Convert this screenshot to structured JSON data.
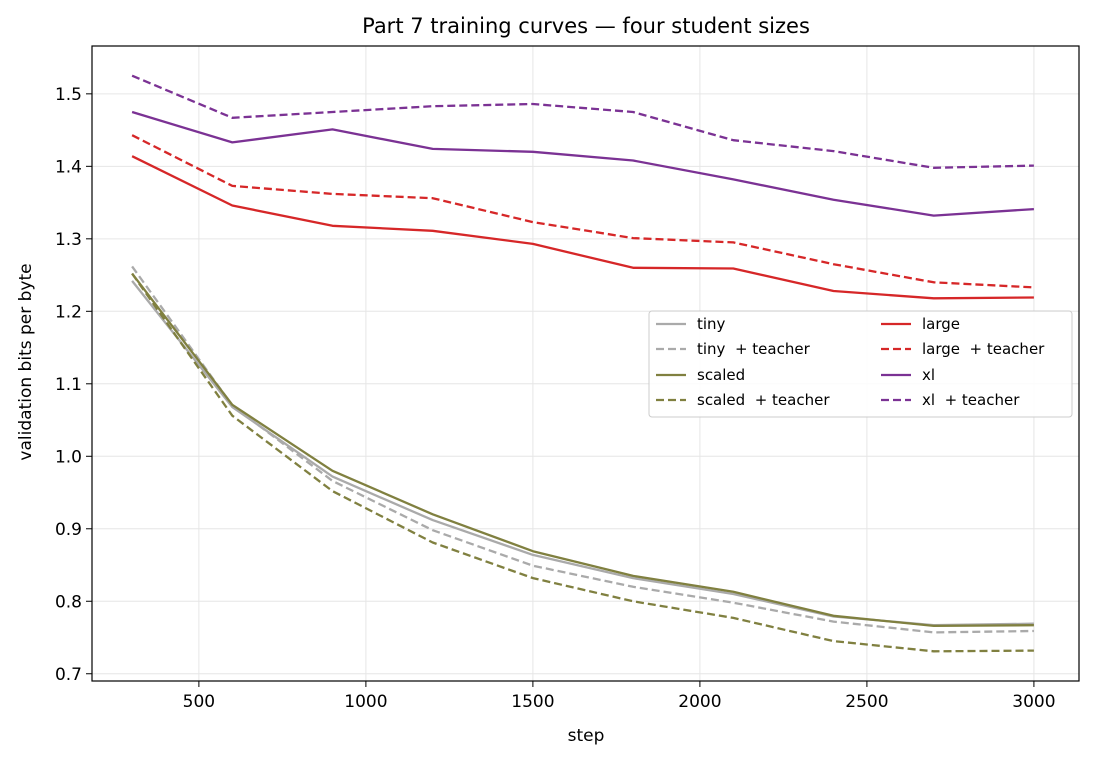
{
  "chart_data": {
    "type": "line",
    "title": "Part 7 training curves — four student sizes",
    "xlabel": "step",
    "ylabel": "validation bits per byte",
    "xlim": [
      180,
      3135
    ],
    "ylim": [
      0.69,
      1.566
    ],
    "xticks": [
      500,
      1000,
      1500,
      2000,
      2500,
      3000
    ],
    "yticks": [
      0.7,
      0.8,
      0.9,
      1.0,
      1.1,
      1.2,
      1.3,
      1.4,
      1.5
    ],
    "xtick_labels": [
      "500",
      "1000",
      "1500",
      "2000",
      "2500",
      "3000"
    ],
    "ytick_labels": [
      "0.7",
      "0.8",
      "0.9",
      "1.0",
      "1.1",
      "1.2",
      "1.3",
      "1.4",
      "1.5"
    ],
    "grid": true,
    "legend": {
      "placement": "center-right",
      "columns": 2
    },
    "x": [
      300,
      600,
      900,
      1200,
      1500,
      1800,
      2100,
      2400,
      2700,
      3000
    ],
    "series": [
      {
        "name": "tiny",
        "color": "#aaaaaa",
        "dashed": false,
        "values": [
          1.242,
          1.068,
          0.972,
          0.912,
          0.864,
          0.832,
          0.81,
          0.779,
          0.767,
          0.769
        ]
      },
      {
        "name": "tiny  + teacher",
        "color": "#aaaaaa",
        "dashed": true,
        "values": [
          1.262,
          1.07,
          0.966,
          0.898,
          0.849,
          0.82,
          0.798,
          0.772,
          0.757,
          0.759
        ]
      },
      {
        "name": "scaled",
        "color": "#808040",
        "dashed": false,
        "values": [
          1.252,
          1.071,
          0.98,
          0.92,
          0.869,
          0.835,
          0.813,
          0.78,
          0.766,
          0.767
        ]
      },
      {
        "name": "scaled  + teacher",
        "color": "#808040",
        "dashed": true,
        "values": [
          1.252,
          1.056,
          0.952,
          0.881,
          0.832,
          0.8,
          0.777,
          0.745,
          0.731,
          0.732
        ]
      },
      {
        "name": "large",
        "color": "#d62728",
        "dashed": false,
        "values": [
          1.414,
          1.346,
          1.318,
          1.311,
          1.293,
          1.26,
          1.259,
          1.228,
          1.218,
          1.219
        ]
      },
      {
        "name": "large  + teacher",
        "color": "#d62728",
        "dashed": true,
        "values": [
          1.443,
          1.373,
          1.362,
          1.356,
          1.323,
          1.301,
          1.295,
          1.265,
          1.24,
          1.233
        ]
      },
      {
        "name": "xl",
        "color": "#7b3294",
        "dashed": false,
        "values": [
          1.475,
          1.433,
          1.451,
          1.424,
          1.42,
          1.408,
          1.382,
          1.354,
          1.332,
          1.341
        ]
      },
      {
        "name": "xl  + teacher",
        "color": "#7b3294",
        "dashed": true,
        "values": [
          1.525,
          1.467,
          1.475,
          1.483,
          1.486,
          1.475,
          1.436,
          1.421,
          1.398,
          1.401
        ]
      }
    ]
  }
}
